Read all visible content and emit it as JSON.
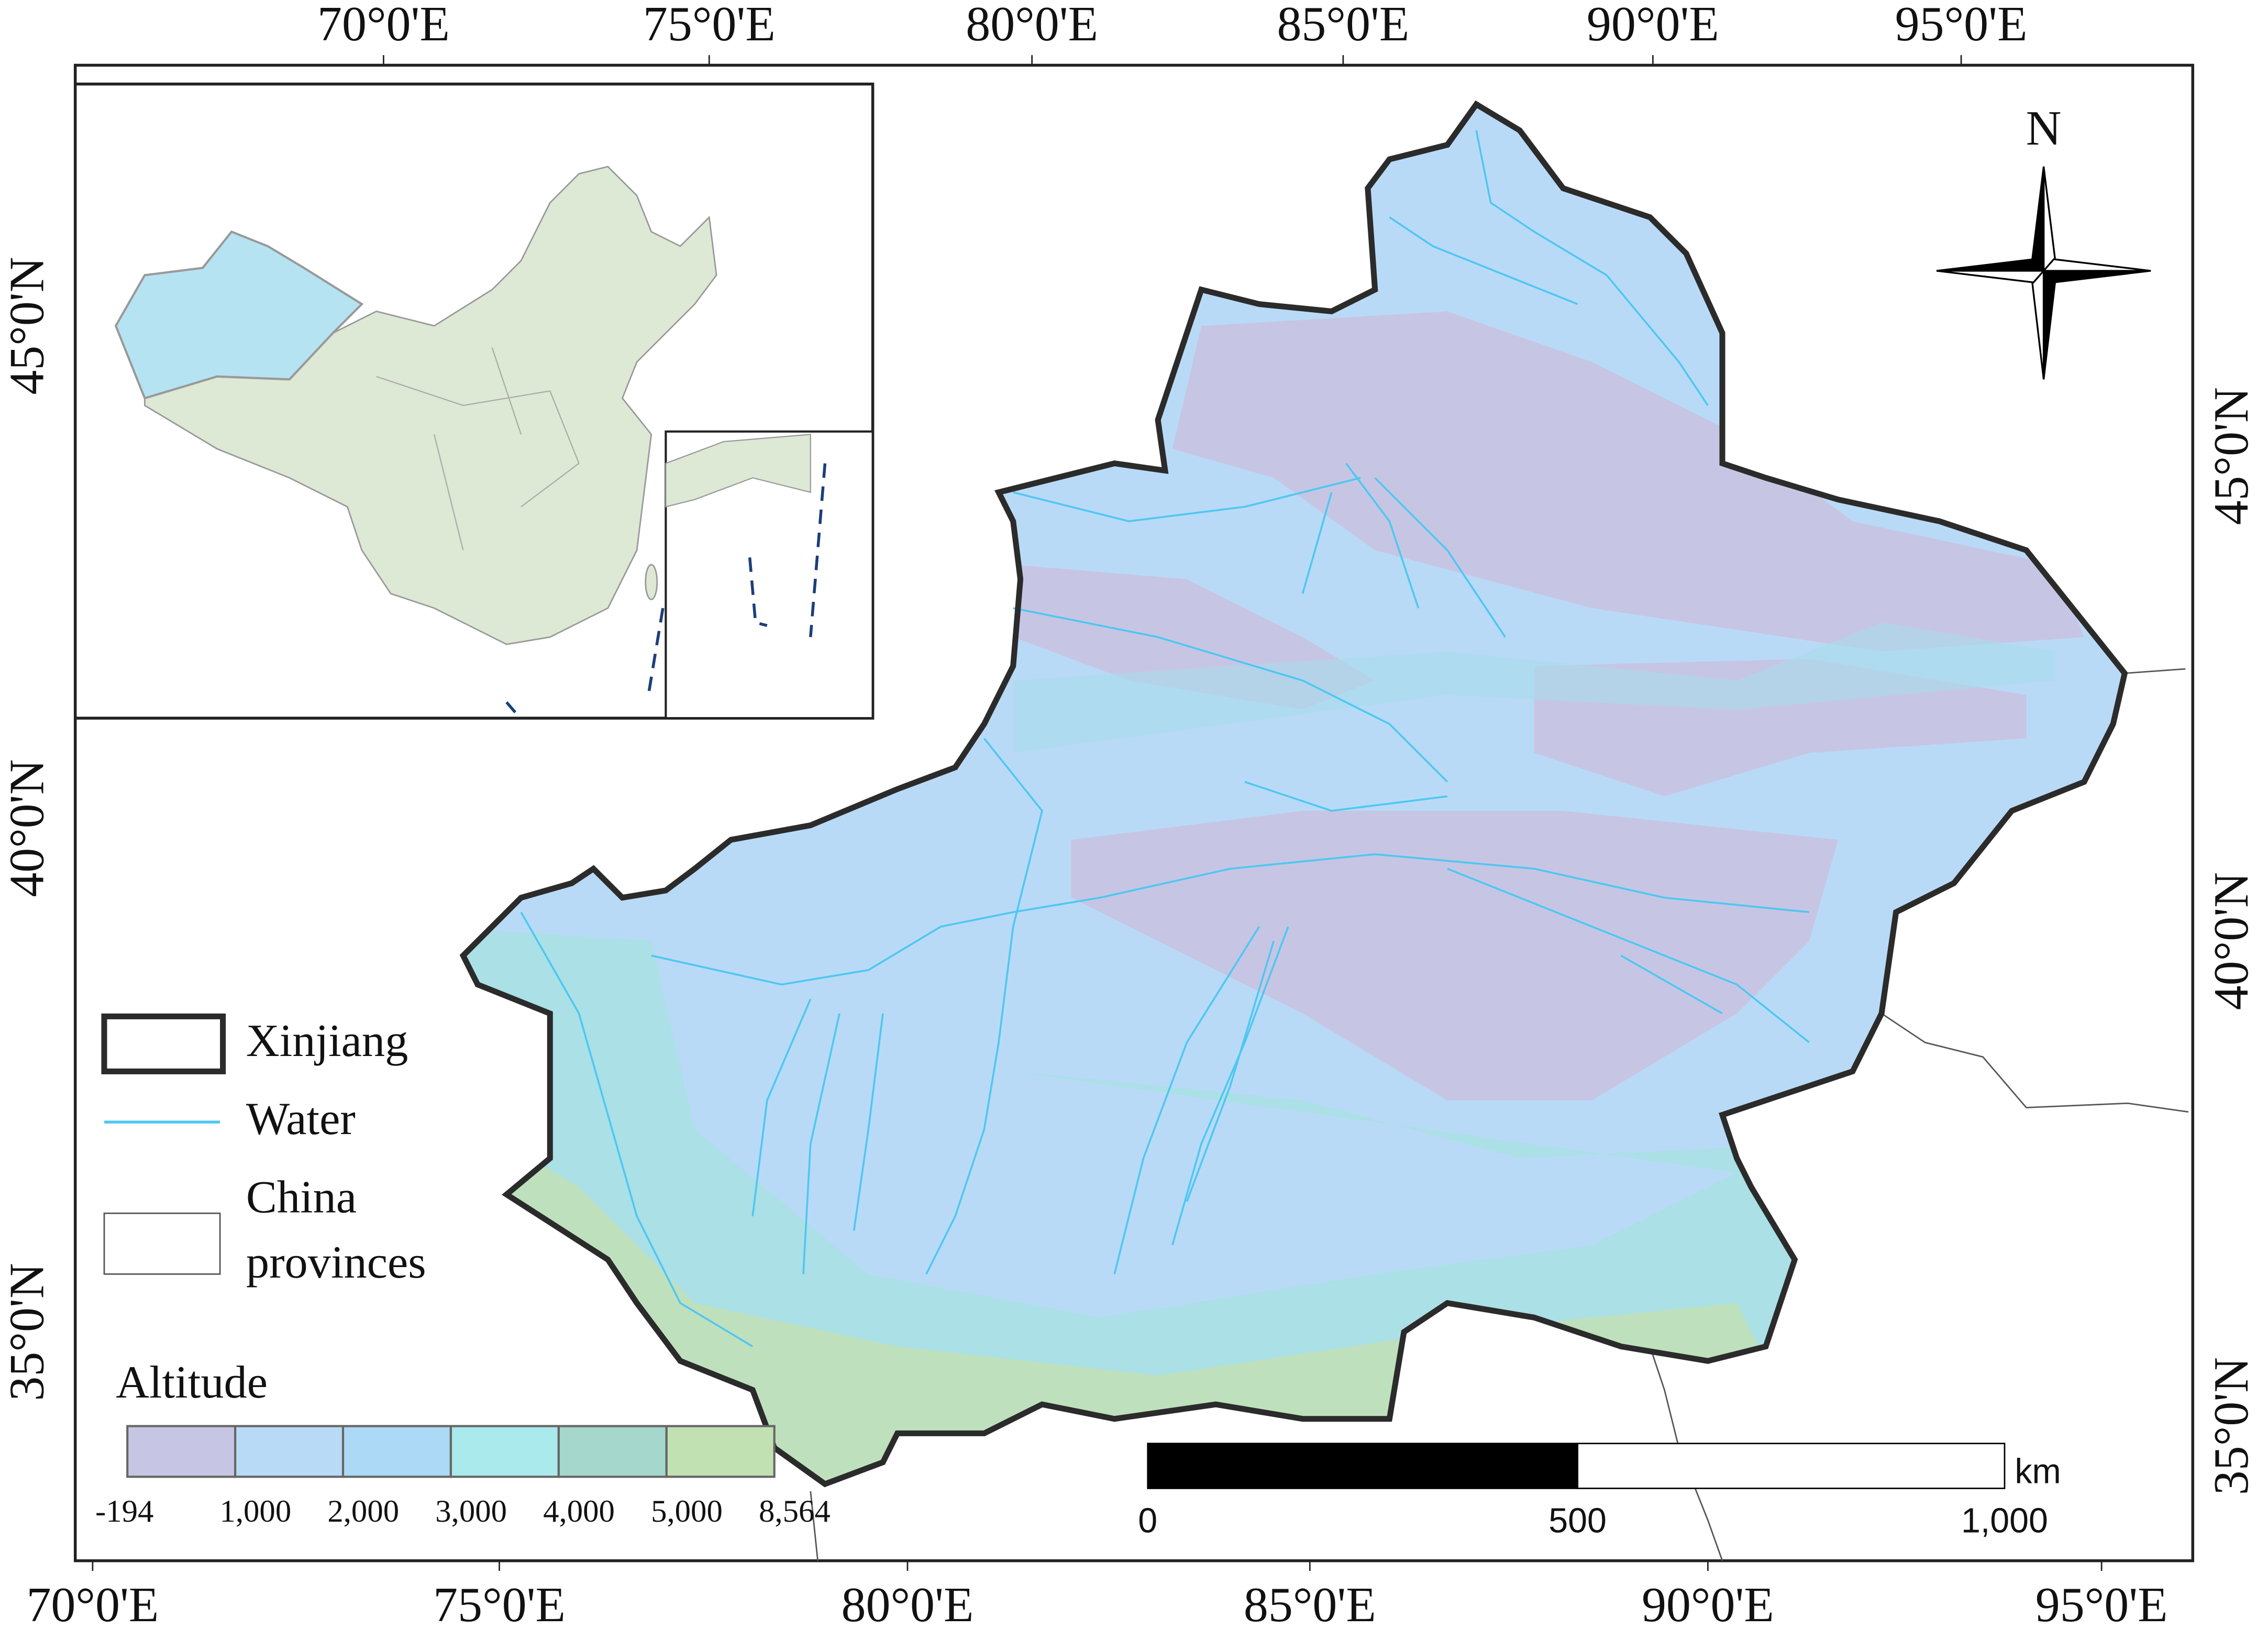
{
  "map": {
    "top_axis": [
      "70°0'E",
      "75°0'E",
      "80°0'E",
      "85°0'E",
      "90°0'E",
      "95°0'E"
    ],
    "bottom_axis": [
      "70°0'E",
      "75°0'E",
      "80°0'E",
      "85°0'E",
      "90°0'E",
      "95°0'E"
    ],
    "left_axis": [
      "45°0'N",
      "40°0'N",
      "35°0'N"
    ],
    "right_axis": [
      "45°0'N",
      "40°0'N",
      "35°0'N"
    ],
    "north": "N",
    "legend": {
      "items": [
        {
          "label": [
            "Xinjiang"
          ]
        },
        {
          "label": [
            "Water"
          ]
        },
        {
          "label": [
            "China",
            "provinces"
          ]
        }
      ]
    },
    "altitude": {
      "title": "Altitude",
      "labels": [
        "-194",
        "1,000",
        "2,000",
        "3,000",
        "4,000",
        "5,000",
        "8,564"
      ],
      "colors": [
        "#c6c6e4",
        "#b9daf6",
        "#abd9f6",
        "#aae9ec",
        "#a6d7cc",
        "#c2e1b2"
      ]
    },
    "scale_bar": {
      "unit": "km",
      "labels": [
        "0",
        "500",
        "1,000"
      ]
    }
  }
}
